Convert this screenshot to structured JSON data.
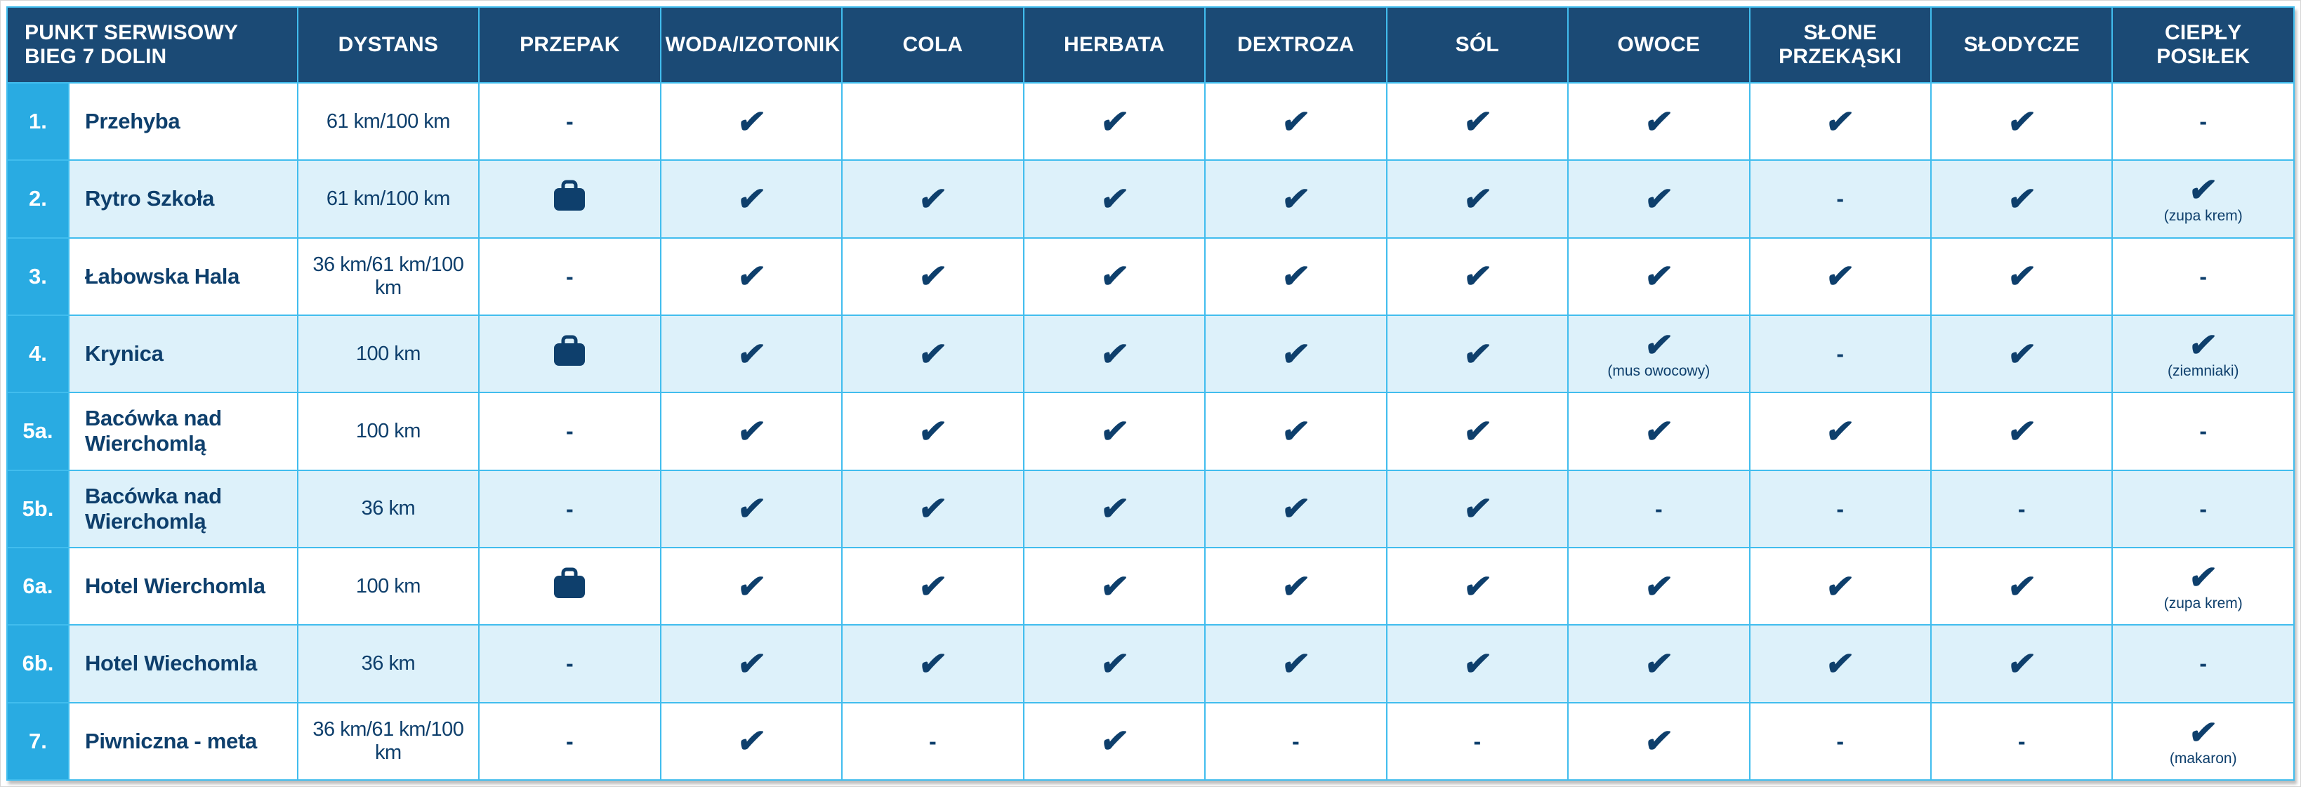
{
  "glyphs": {
    "check": "✔",
    "dash": "-"
  },
  "colors": {
    "header_bg": "#1b4a75",
    "row_alt_bg": "#ddf1fa",
    "row_bg": "#ffffff",
    "number_col_bg": "#29abe2",
    "grid_line": "#41bdee",
    "text_navy": "#0e3f6c"
  },
  "table": {
    "columns": [
      {
        "key": "punkt",
        "label": "PUNKT SERWISOWY BIEG 7 DOLIN",
        "span": 2
      },
      {
        "key": "dystans",
        "label": "DYSTANS"
      },
      {
        "key": "przepak",
        "label": "PRZEPAK"
      },
      {
        "key": "woda-izotonik",
        "label": "WODA/IZOTONIK"
      },
      {
        "key": "cola",
        "label": "COLA"
      },
      {
        "key": "herbata",
        "label": "HERBATA"
      },
      {
        "key": "dextroza",
        "label": "DEXTROZA"
      },
      {
        "key": "sol",
        "label": "SÓL"
      },
      {
        "key": "owoce",
        "label": "OWOCE"
      },
      {
        "key": "slone-przekaski",
        "label": "SŁONE PRZEKĄSKI"
      },
      {
        "key": "slodycze",
        "label": "SŁODYCZE"
      },
      {
        "key": "cieply-posilek",
        "label": "CIEPŁY POSIŁEK"
      }
    ],
    "rows": [
      {
        "num": "1.",
        "name": "Przehyba",
        "distance": "61 km/100 km",
        "cells": [
          {
            "type": "dash"
          },
          {
            "type": "check"
          },
          {
            "type": "blank"
          },
          {
            "type": "check"
          },
          {
            "type": "check"
          },
          {
            "type": "check"
          },
          {
            "type": "check"
          },
          {
            "type": "check"
          },
          {
            "type": "check"
          },
          {
            "type": "dash"
          }
        ]
      },
      {
        "num": "2.",
        "name": "Rytro Szkoła",
        "distance": "61 km/100 km",
        "cells": [
          {
            "type": "bag"
          },
          {
            "type": "check"
          },
          {
            "type": "check"
          },
          {
            "type": "check"
          },
          {
            "type": "check"
          },
          {
            "type": "check"
          },
          {
            "type": "check"
          },
          {
            "type": "dash"
          },
          {
            "type": "check"
          },
          {
            "type": "check",
            "note": "(zupa krem)"
          }
        ]
      },
      {
        "num": "3.",
        "name": "Łabowska Hala",
        "distance": "36 km/61 km/100 km",
        "cells": [
          {
            "type": "dash"
          },
          {
            "type": "check"
          },
          {
            "type": "check"
          },
          {
            "type": "check"
          },
          {
            "type": "check"
          },
          {
            "type": "check"
          },
          {
            "type": "check"
          },
          {
            "type": "check"
          },
          {
            "type": "check"
          },
          {
            "type": "dash"
          }
        ]
      },
      {
        "num": "4.",
        "name": "Krynica",
        "distance": "100 km",
        "cells": [
          {
            "type": "bag"
          },
          {
            "type": "check"
          },
          {
            "type": "check"
          },
          {
            "type": "check"
          },
          {
            "type": "check"
          },
          {
            "type": "check"
          },
          {
            "type": "check",
            "note": "(mus owocowy)"
          },
          {
            "type": "dash"
          },
          {
            "type": "check"
          },
          {
            "type": "check",
            "note": "(ziemniaki)"
          }
        ]
      },
      {
        "num": "5a.",
        "name": "Bacówka nad Wierchomlą",
        "distance": "100 km",
        "cells": [
          {
            "type": "dash"
          },
          {
            "type": "check"
          },
          {
            "type": "check"
          },
          {
            "type": "check"
          },
          {
            "type": "check"
          },
          {
            "type": "check"
          },
          {
            "type": "check"
          },
          {
            "type": "check"
          },
          {
            "type": "check"
          },
          {
            "type": "dash"
          }
        ]
      },
      {
        "num": "5b.",
        "name": "Bacówka nad Wierchomlą",
        "distance": "36 km",
        "cells": [
          {
            "type": "dash"
          },
          {
            "type": "check"
          },
          {
            "type": "check"
          },
          {
            "type": "check"
          },
          {
            "type": "check"
          },
          {
            "type": "check"
          },
          {
            "type": "dash"
          },
          {
            "type": "dash"
          },
          {
            "type": "dash"
          },
          {
            "type": "dash"
          }
        ]
      },
      {
        "num": "6a.",
        "name": "Hotel Wierchomla",
        "distance": "100 km",
        "cells": [
          {
            "type": "bag"
          },
          {
            "type": "check"
          },
          {
            "type": "check"
          },
          {
            "type": "check"
          },
          {
            "type": "check"
          },
          {
            "type": "check"
          },
          {
            "type": "check"
          },
          {
            "type": "check"
          },
          {
            "type": "check"
          },
          {
            "type": "check",
            "note": "(zupa krem)"
          }
        ]
      },
      {
        "num": "6b.",
        "name": "Hotel Wiechomla",
        "distance": "36 km",
        "cells": [
          {
            "type": "dash"
          },
          {
            "type": "check"
          },
          {
            "type": "check"
          },
          {
            "type": "check"
          },
          {
            "type": "check"
          },
          {
            "type": "check"
          },
          {
            "type": "check"
          },
          {
            "type": "check"
          },
          {
            "type": "check"
          },
          {
            "type": "dash"
          }
        ]
      },
      {
        "num": "7.",
        "name": "Piwniczna - meta",
        "distance": "36 km/61 km/100 km",
        "cells": [
          {
            "type": "dash"
          },
          {
            "type": "check"
          },
          {
            "type": "dash"
          },
          {
            "type": "check"
          },
          {
            "type": "dash"
          },
          {
            "type": "dash"
          },
          {
            "type": "check"
          },
          {
            "type": "dash"
          },
          {
            "type": "dash"
          },
          {
            "type": "check",
            "note": "(makaron)"
          }
        ]
      }
    ]
  }
}
